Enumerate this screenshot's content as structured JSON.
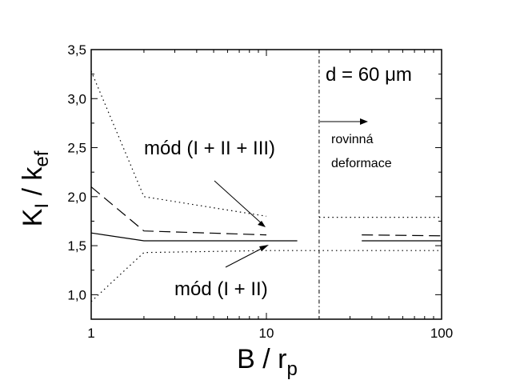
{
  "chart_data": {
    "type": "line",
    "xscale": "log",
    "xlim": [
      1,
      100
    ],
    "ylim": [
      0.75,
      3.5
    ],
    "xticks": [
      1,
      10,
      100
    ],
    "x_tick_labels": [
      "1",
      "10",
      "100"
    ],
    "yticks": [
      1.0,
      1.5,
      2.0,
      2.5,
      3.0,
      3.5
    ],
    "y_tick_labels": [
      "1,0",
      "1,5",
      "2,0",
      "2,5",
      "3,0",
      "3,5"
    ],
    "xlabel": {
      "main": "B / r",
      "sub": "p"
    },
    "ylabel": {
      "main": "K",
      "sub1": "I",
      "mid": " / k",
      "sub2": "ef"
    },
    "title": "",
    "grid": false,
    "legend": "none",
    "series": [
      {
        "style": "dotted",
        "x": [
          1,
          2,
          10
        ],
        "y": [
          3.28,
          2.0,
          1.8
        ]
      },
      {
        "style": "dotted",
        "x": [
          20,
          100
        ],
        "y": [
          1.79,
          1.79
        ]
      },
      {
        "style": "dashed",
        "x": [
          1,
          2,
          10
        ],
        "y": [
          2.1,
          1.65,
          1.61
        ]
      },
      {
        "style": "dashed",
        "x": [
          35,
          100
        ],
        "y": [
          1.61,
          1.6
        ]
      },
      {
        "style": "solid",
        "x": [
          1,
          2,
          10,
          15
        ],
        "y": [
          1.63,
          1.55,
          1.55,
          1.55
        ]
      },
      {
        "style": "solid",
        "x": [
          35,
          100
        ],
        "y": [
          1.55,
          1.55
        ]
      },
      {
        "style": "dotted",
        "x": [
          1,
          2,
          10,
          100
        ],
        "y": [
          0.93,
          1.43,
          1.45,
          1.45
        ]
      }
    ],
    "vline": {
      "x": 20,
      "style": "dash-dot"
    },
    "annotations": {
      "mode3": "mód (I + II + III)",
      "mode2": "mód (I + II)",
      "thickness": "d = 60 μm",
      "plane_strain_line1": "rovinná",
      "plane_strain_line2": "deformace"
    }
  }
}
